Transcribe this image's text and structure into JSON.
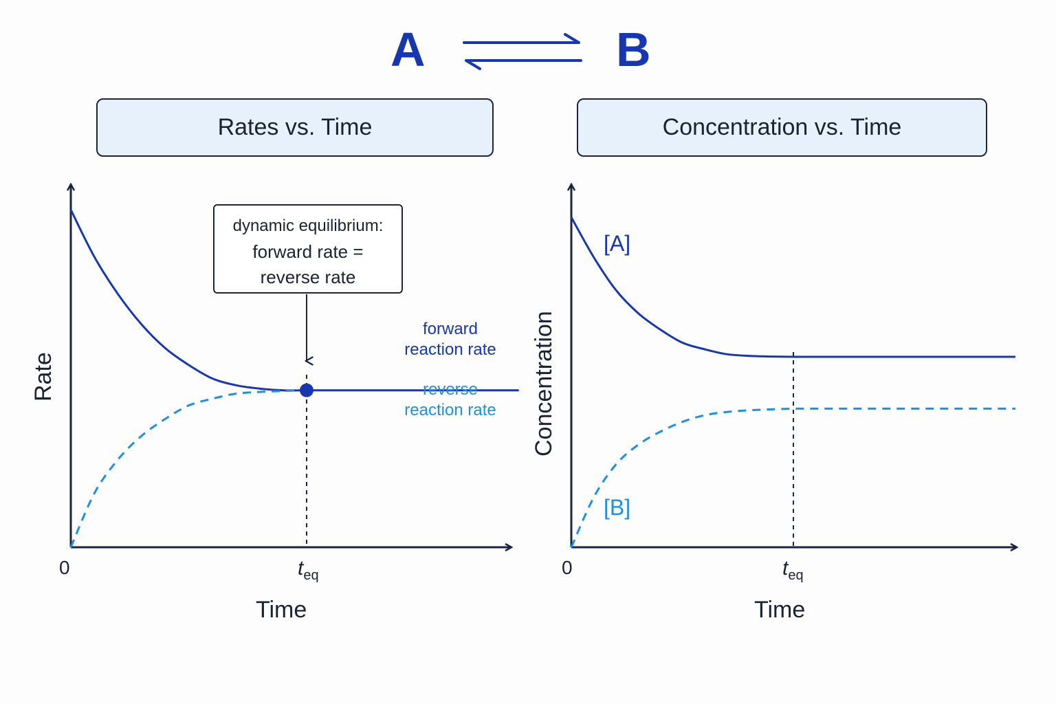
{
  "header": {
    "species_a": "A",
    "species_b": "B",
    "arrow_icon": "equilibrium-arrows-icon"
  },
  "colors": {
    "forward": "#1737b0",
    "reverse": "#1e90e0",
    "axis": "#1b2540",
    "title_fill": "#e7f1fc"
  },
  "chart_data": [
    {
      "type": "line",
      "title": "Rates vs. Time",
      "xlabel": "Time",
      "ylabel": "Rate",
      "x_ticks": [
        "0",
        "t_eq"
      ],
      "t_eq_label": {
        "main": "t",
        "sub": "eq"
      },
      "xlim": [
        0,
        1.9
      ],
      "ylim": [
        0,
        1.0
      ],
      "t_eq": 1.0,
      "series": [
        {
          "name": "forward reaction rate",
          "style": "solid",
          "x": [
            0,
            0.1,
            0.2,
            0.3,
            0.4,
            0.5,
            0.6,
            0.7,
            0.8,
            0.9,
            1.0,
            1.9
          ],
          "y": [
            1.0,
            0.86,
            0.75,
            0.66,
            0.59,
            0.54,
            0.5,
            0.48,
            0.47,
            0.465,
            0.465,
            0.465
          ]
        },
        {
          "name": "reverse reaction rate",
          "style": "dashed",
          "x": [
            0,
            0.1,
            0.2,
            0.3,
            0.4,
            0.5,
            0.6,
            0.7,
            0.8,
            0.9,
            1.0
          ],
          "y": [
            0.0,
            0.16,
            0.26,
            0.33,
            0.38,
            0.42,
            0.44,
            0.455,
            0.46,
            0.463,
            0.465
          ]
        }
      ],
      "series_labels": {
        "forward": [
          "forward",
          "reaction rate"
        ],
        "reverse": [
          "reverse",
          "reaction rate"
        ]
      },
      "annotation": {
        "line1": "dynamic equilibrium:",
        "line2": "forward rate =",
        "line3": "reverse rate"
      }
    },
    {
      "type": "line",
      "title": "Concentration vs. Time",
      "xlabel": "Time",
      "ylabel": "Concentration",
      "x_ticks": [
        "0",
        "t_eq"
      ],
      "t_eq_label": {
        "main": "t",
        "sub": "eq"
      },
      "xlim": [
        0,
        2.0
      ],
      "ylim": [
        0,
        1.0
      ],
      "t_eq": 1.0,
      "series": [
        {
          "name": "[A]",
          "style": "solid",
          "x": [
            0,
            0.1,
            0.2,
            0.3,
            0.4,
            0.5,
            0.6,
            0.7,
            0.8,
            0.9,
            1.0,
            2.0
          ],
          "y": [
            1.0,
            0.88,
            0.78,
            0.71,
            0.66,
            0.62,
            0.6,
            0.585,
            0.58,
            0.578,
            0.577,
            0.577
          ]
        },
        {
          "name": "[B]",
          "style": "dashed",
          "x": [
            0,
            0.1,
            0.2,
            0.3,
            0.4,
            0.5,
            0.6,
            0.7,
            0.8,
            0.9,
            1.0,
            2.0
          ],
          "y": [
            0.0,
            0.15,
            0.25,
            0.31,
            0.35,
            0.38,
            0.4,
            0.41,
            0.415,
            0.418,
            0.42,
            0.42
          ]
        }
      ]
    }
  ]
}
